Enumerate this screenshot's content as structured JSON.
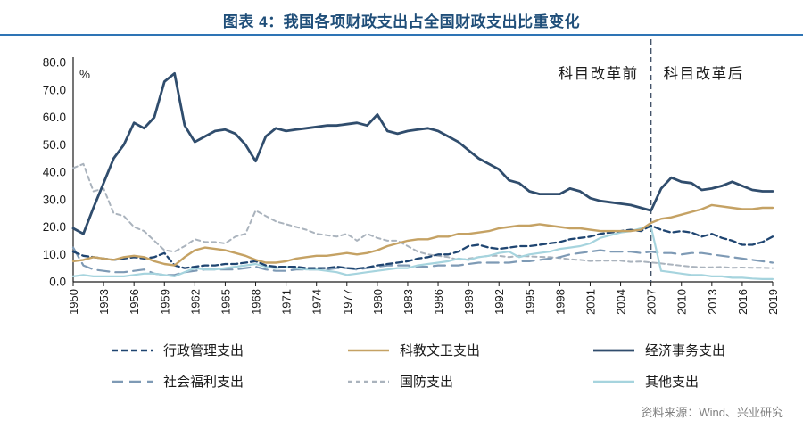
{
  "title": "图表 4：我国各项财政支出占全国财政支出比重变化",
  "source": "资料来源：Wind、兴业研究",
  "annotations": {
    "pre_label": "科目改革前",
    "post_label": "科目改革后",
    "reform_year": 2007
  },
  "colors": {
    "title": "#1f4e79",
    "title_rule": "#2e74b5",
    "axis": "#1a1a1a",
    "source_text": "#808080"
  },
  "chart_data": {
    "type": "line",
    "title": "图表 4：我国各项财政支出占全国财政支出比重变化",
    "y_unit": "%",
    "ylim": [
      0,
      80
    ],
    "ytick_step": 10,
    "x_tick_step": 3,
    "x": [
      1950,
      1951,
      1952,
      1953,
      1954,
      1955,
      1956,
      1957,
      1958,
      1959,
      1960,
      1961,
      1962,
      1963,
      1964,
      1965,
      1966,
      1967,
      1968,
      1969,
      1970,
      1971,
      1972,
      1973,
      1974,
      1975,
      1976,
      1977,
      1978,
      1979,
      1980,
      1981,
      1982,
      1983,
      1984,
      1985,
      1986,
      1987,
      1988,
      1989,
      1990,
      1991,
      1992,
      1993,
      1994,
      1995,
      1996,
      1997,
      1998,
      1999,
      2000,
      2001,
      2002,
      2003,
      2004,
      2005,
      2006,
      2007,
      2008,
      2009,
      2010,
      2011,
      2012,
      2013,
      2014,
      2015,
      2016,
      2017,
      2018,
      2019
    ],
    "series": [
      {
        "name": "行政管理支出",
        "color": "#1f4571",
        "dash": "7 4",
        "width": 2.3,
        "values": [
          11,
          9.5,
          9,
          8.5,
          8,
          8.5,
          9,
          8.5,
          9,
          10.5,
          6,
          5,
          5.5,
          6,
          6,
          6.5,
          6.5,
          7,
          7.5,
          6,
          5.5,
          5.5,
          5.5,
          5,
          5,
          5,
          5.5,
          5,
          4.8,
          5.2,
          6,
          6.5,
          7,
          7.5,
          8.5,
          9,
          10,
          10,
          11,
          13,
          13.5,
          12.5,
          12,
          12.5,
          13,
          13,
          13.5,
          14,
          14.5,
          15.5,
          16,
          16.5,
          17.5,
          18,
          18.5,
          19,
          18.5,
          20.5,
          19,
          18,
          18.5,
          18,
          16.5,
          17.5,
          16,
          15,
          13.5,
          13.5,
          14.5,
          16.5
        ]
      },
      {
        "name": "科教文卫支出",
        "color": "#c5a264",
        "dash": "",
        "width": 2.4,
        "values": [
          7.5,
          8,
          9,
          8.5,
          8,
          9,
          9.5,
          9,
          7.5,
          6.5,
          6,
          9,
          11.5,
          12.5,
          12,
          11.5,
          10.5,
          9.5,
          8,
          7,
          7,
          7.5,
          8.5,
          9,
          9.5,
          9.5,
          10,
          10.5,
          10,
          10.5,
          11.5,
          13,
          14,
          15,
          15.5,
          15.5,
          16.5,
          16.5,
          17.5,
          17.5,
          18,
          18.5,
          19.5,
          20,
          20.5,
          20.5,
          21,
          20.5,
          20,
          19.5,
          19.5,
          19,
          18.5,
          18.5,
          18.5,
          18.5,
          19,
          21.5,
          23,
          23.5,
          24.5,
          25.5,
          26.5,
          28,
          27.5,
          27,
          26.5,
          26.5,
          27,
          27
        ]
      },
      {
        "name": "经济事务支出",
        "color": "#304d6d",
        "dash": "",
        "width": 2.8,
        "values": [
          19.5,
          17.5,
          27,
          36,
          45,
          50,
          58,
          56,
          60,
          73,
          76,
          57,
          51,
          53,
          55,
          55.5,
          54,
          50,
          44,
          53,
          56,
          55,
          55.5,
          56,
          56.5,
          57,
          57,
          57.5,
          58,
          57,
          61,
          55,
          54,
          55,
          55.5,
          56,
          55,
          53,
          51,
          48,
          45,
          43,
          41,
          37,
          36,
          33,
          32,
          32,
          32,
          34,
          33,
          30.5,
          29.5,
          29,
          28.5,
          28,
          27,
          26,
          34,
          38,
          36.5,
          36,
          33.5,
          34,
          35,
          36.5,
          35,
          33.5,
          33,
          33
        ]
      },
      {
        "name": "社会福利支出",
        "color": "#7e9ab5",
        "dash": "13 7",
        "width": 2.2,
        "values": [
          12.5,
          6,
          4.5,
          4,
          3.5,
          3.5,
          4,
          4.5,
          3,
          2.5,
          2.5,
          3.5,
          4,
          4.5,
          4.5,
          4.5,
          4.5,
          5,
          5.5,
          4.5,
          4,
          4,
          4.5,
          4.5,
          4.5,
          4.5,
          5,
          5,
          4.5,
          5,
          5.5,
          6,
          6,
          6,
          5.5,
          5.5,
          6,
          6,
          6,
          6.5,
          7,
          7,
          7,
          7,
          7.5,
          7.5,
          8,
          8.5,
          9,
          10,
          10.5,
          11,
          11.5,
          11,
          11,
          11,
          10.5,
          11,
          10.5,
          10.5,
          10,
          10.5,
          10.5,
          10,
          9.5,
          9,
          8.5,
          8,
          7.5,
          7
        ]
      },
      {
        "name": "国防支出",
        "color": "#aab3bd",
        "dash": "5 4",
        "width": 2,
        "values": [
          41.5,
          43,
          33,
          34,
          25,
          24,
          20,
          18.5,
          15,
          11.5,
          11,
          13,
          15.5,
          14.5,
          14.5,
          14,
          16.5,
          17.5,
          26,
          24,
          22,
          21,
          20,
          19,
          17.5,
          17,
          16.5,
          17.5,
          15,
          17.5,
          16,
          15,
          15,
          13,
          11,
          10,
          9.5,
          9,
          8,
          8.5,
          9,
          9.5,
          9.5,
          9,
          9.5,
          9.3,
          9.1,
          9,
          8.7,
          8.2,
          8,
          7.6,
          7.7,
          7.7,
          7.7,
          7.3,
          7.4,
          7.1,
          6.7,
          6.3,
          5.9,
          5.5,
          5.3,
          5.3,
          5.4,
          5.1,
          5.2,
          5.1,
          5.1,
          5
        ]
      },
      {
        "name": "其他支出",
        "color": "#a6d4de",
        "dash": "",
        "width": 2.2,
        "values": [
          2,
          2.5,
          2,
          2,
          2,
          2,
          2.5,
          3,
          3,
          2.5,
          2,
          3.5,
          5,
          4.5,
          4.5,
          5,
          5.5,
          6,
          6.5,
          5.5,
          5,
          5.5,
          5,
          4.5,
          4.5,
          4,
          3.5,
          2.5,
          3,
          3.5,
          4,
          4.5,
          5,
          5,
          6,
          6.5,
          7,
          7.5,
          8.5,
          8,
          9,
          9.5,
          10.5,
          11,
          9,
          10,
          10.5,
          11,
          12,
          12.5,
          13,
          14,
          16,
          17,
          18,
          18.5,
          19.5,
          20,
          4,
          3.5,
          3,
          2.5,
          2.5,
          2,
          2,
          1.5,
          1.5,
          1.2,
          1,
          1
        ]
      }
    ],
    "legend_position": "bottom",
    "grid": false
  }
}
